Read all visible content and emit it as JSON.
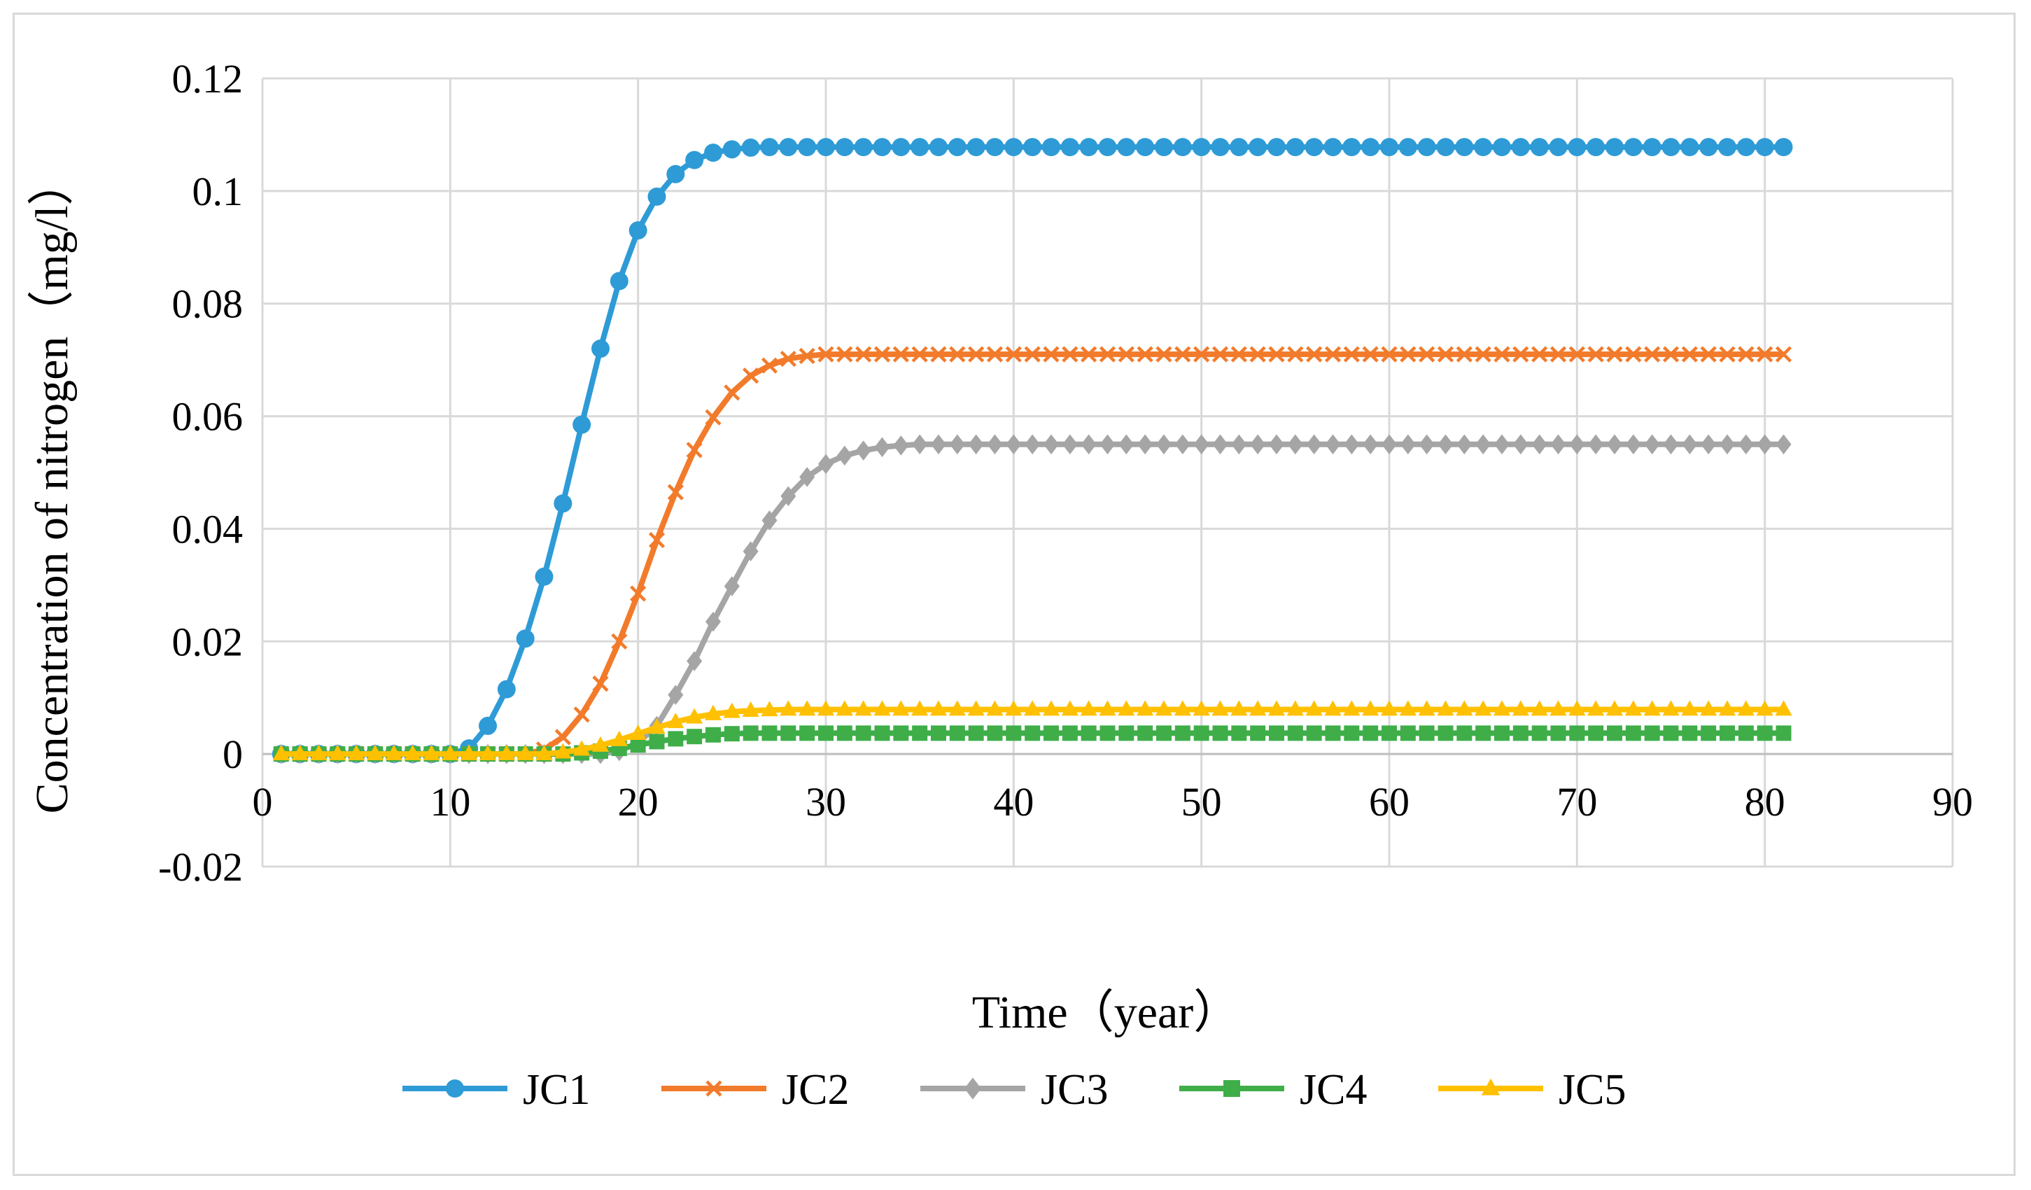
{
  "chart_data": {
    "type": "line",
    "title": "",
    "xlabel": "Time（year）",
    "ylabel": "Concentration of nitrogen（mg/l）",
    "xlim": [
      0,
      90
    ],
    "ylim": [
      -0.02,
      0.12
    ],
    "x_ticks": [
      "0",
      "10",
      "20",
      "30",
      "40",
      "50",
      "60",
      "70",
      "80",
      "90"
    ],
    "y_ticks": [
      "-0.02",
      "0",
      "0.02",
      "0.04",
      "0.06",
      "0.08",
      "0.1",
      "0.12"
    ],
    "grid": true,
    "legend_position": "bottom",
    "x": [
      1,
      2,
      3,
      4,
      5,
      6,
      7,
      8,
      9,
      10,
      11,
      12,
      13,
      14,
      15,
      16,
      17,
      18,
      19,
      20,
      21,
      22,
      23,
      24,
      25,
      26,
      27,
      28,
      29,
      30,
      31,
      32,
      33,
      34,
      35,
      36,
      37,
      38,
      39,
      40,
      41,
      42,
      43,
      44,
      45,
      46,
      47,
      48,
      49,
      50,
      51,
      52,
      53,
      54,
      55,
      56,
      57,
      58,
      59,
      60,
      61,
      62,
      63,
      64,
      65,
      66,
      67,
      68,
      69,
      70,
      71,
      72,
      73,
      74,
      75,
      76,
      77,
      78,
      79,
      80,
      81
    ],
    "series": [
      {
        "name": "JC1",
        "color": "#2E9BD6",
        "marker": "circle",
        "values": [
          0,
          0,
          0,
          0,
          0,
          0,
          0,
          0,
          0,
          0,
          0.001,
          0.005,
          0.0115,
          0.0205,
          0.0315,
          0.0445,
          0.0585,
          0.072,
          0.084,
          0.093,
          0.099,
          0.103,
          0.1055,
          0.1068,
          0.1074,
          0.1077,
          0.1078,
          0.1078,
          0.1078,
          0.1078,
          0.1078,
          0.1078,
          0.1078,
          0.1078,
          0.1078,
          0.1078,
          0.1078,
          0.1078,
          0.1078,
          0.1078,
          0.1078,
          0.1078,
          0.1078,
          0.1078,
          0.1078,
          0.1078,
          0.1078,
          0.1078,
          0.1078,
          0.1078,
          0.1078,
          0.1078,
          0.1078,
          0.1078,
          0.1078,
          0.1078,
          0.1078,
          0.1078,
          0.1078,
          0.1078,
          0.1078,
          0.1078,
          0.1078,
          0.1078,
          0.1078,
          0.1078,
          0.1078,
          0.1078,
          0.1078,
          0.1078,
          0.1078,
          0.1078,
          0.1078,
          0.1078,
          0.1078,
          0.1078,
          0.1078,
          0.1078,
          0.1078,
          0.1078,
          0.1078
        ]
      },
      {
        "name": "JC2",
        "color": "#F27B2B",
        "marker": "x",
        "values": [
          0,
          0,
          0,
          0,
          0,
          0,
          0,
          0,
          0,
          0,
          0,
          0,
          0,
          0,
          0.0008,
          0.003,
          0.007,
          0.0125,
          0.02,
          0.0285,
          0.038,
          0.0465,
          0.054,
          0.0598,
          0.0642,
          0.0672,
          0.069,
          0.0702,
          0.0707,
          0.071,
          0.071,
          0.071,
          0.071,
          0.071,
          0.071,
          0.071,
          0.071,
          0.071,
          0.071,
          0.071,
          0.071,
          0.071,
          0.071,
          0.071,
          0.071,
          0.071,
          0.071,
          0.071,
          0.071,
          0.071,
          0.071,
          0.071,
          0.071,
          0.071,
          0.071,
          0.071,
          0.071,
          0.071,
          0.071,
          0.071,
          0.071,
          0.071,
          0.071,
          0.071,
          0.071,
          0.071,
          0.071,
          0.071,
          0.071,
          0.071,
          0.071,
          0.071,
          0.071,
          0.071,
          0.071,
          0.071,
          0.071,
          0.071,
          0.071,
          0.071,
          0.071
        ]
      },
      {
        "name": "JC3",
        "color": "#A5A5A5",
        "marker": "diamond",
        "values": [
          0,
          0,
          0,
          0,
          0,
          0,
          0,
          0,
          0,
          0,
          0,
          0,
          0,
          0,
          0,
          0,
          0,
          0,
          0.0005,
          0.002,
          0.005,
          0.0105,
          0.0165,
          0.0235,
          0.0298,
          0.036,
          0.0415,
          0.0458,
          0.0492,
          0.0515,
          0.053,
          0.0539,
          0.0545,
          0.0548,
          0.055,
          0.055,
          0.055,
          0.055,
          0.055,
          0.055,
          0.055,
          0.055,
          0.055,
          0.055,
          0.055,
          0.055,
          0.055,
          0.055,
          0.055,
          0.055,
          0.055,
          0.055,
          0.055,
          0.055,
          0.055,
          0.055,
          0.055,
          0.055,
          0.055,
          0.055,
          0.055,
          0.055,
          0.055,
          0.055,
          0.055,
          0.055,
          0.055,
          0.055,
          0.055,
          0.055,
          0.055,
          0.055,
          0.055,
          0.055,
          0.055,
          0.055,
          0.055,
          0.055,
          0.055,
          0.055,
          0.055
        ]
      },
      {
        "name": "JC4",
        "color": "#3FAE49",
        "marker": "square",
        "values": [
          0,
          0,
          0,
          0,
          0,
          0,
          0,
          0,
          0,
          0,
          0,
          0,
          0,
          0,
          0,
          0,
          0.0002,
          0.0005,
          0.001,
          0.0016,
          0.0022,
          0.0027,
          0.0031,
          0.0034,
          0.0036,
          0.0037,
          0.0037,
          0.0037,
          0.0037,
          0.0037,
          0.0037,
          0.0037,
          0.0037,
          0.0037,
          0.0037,
          0.0037,
          0.0037,
          0.0037,
          0.0037,
          0.0037,
          0.0037,
          0.0037,
          0.0037,
          0.0037,
          0.0037,
          0.0037,
          0.0037,
          0.0037,
          0.0037,
          0.0037,
          0.0037,
          0.0037,
          0.0037,
          0.0037,
          0.0037,
          0.0037,
          0.0037,
          0.0037,
          0.0037,
          0.0037,
          0.0037,
          0.0037,
          0.0037,
          0.0037,
          0.0037,
          0.0037,
          0.0037,
          0.0037,
          0.0037,
          0.0037,
          0.0037,
          0.0037,
          0.0037,
          0.0037,
          0.0037,
          0.0037,
          0.0037,
          0.0037,
          0.0037,
          0.0037,
          0.0037
        ]
      },
      {
        "name": "JC5",
        "color": "#FFC000",
        "marker": "triangle",
        "values": [
          0,
          0,
          0,
          0,
          0,
          0,
          0,
          0,
          0,
          0,
          0,
          0,
          0,
          0,
          0,
          0.0003,
          0.0008,
          0.0015,
          0.0025,
          0.0036,
          0.0047,
          0.0057,
          0.0065,
          0.0071,
          0.0075,
          0.0077,
          0.0078,
          0.0079,
          0.0079,
          0.0079,
          0.0079,
          0.0079,
          0.0079,
          0.0079,
          0.0079,
          0.0079,
          0.0079,
          0.0079,
          0.0079,
          0.0079,
          0.0079,
          0.0079,
          0.0079,
          0.0079,
          0.0079,
          0.0079,
          0.0079,
          0.0079,
          0.0079,
          0.0079,
          0.0079,
          0.0079,
          0.0079,
          0.0079,
          0.0079,
          0.0079,
          0.0079,
          0.0079,
          0.0079,
          0.0079,
          0.0079,
          0.0079,
          0.0079,
          0.0079,
          0.0079,
          0.0079,
          0.0079,
          0.0079,
          0.0079,
          0.0079,
          0.0079,
          0.0079,
          0.0079,
          0.0079,
          0.0079,
          0.0079,
          0.0079,
          0.0079,
          0.0079,
          0.0079,
          0.0079
        ]
      }
    ]
  }
}
